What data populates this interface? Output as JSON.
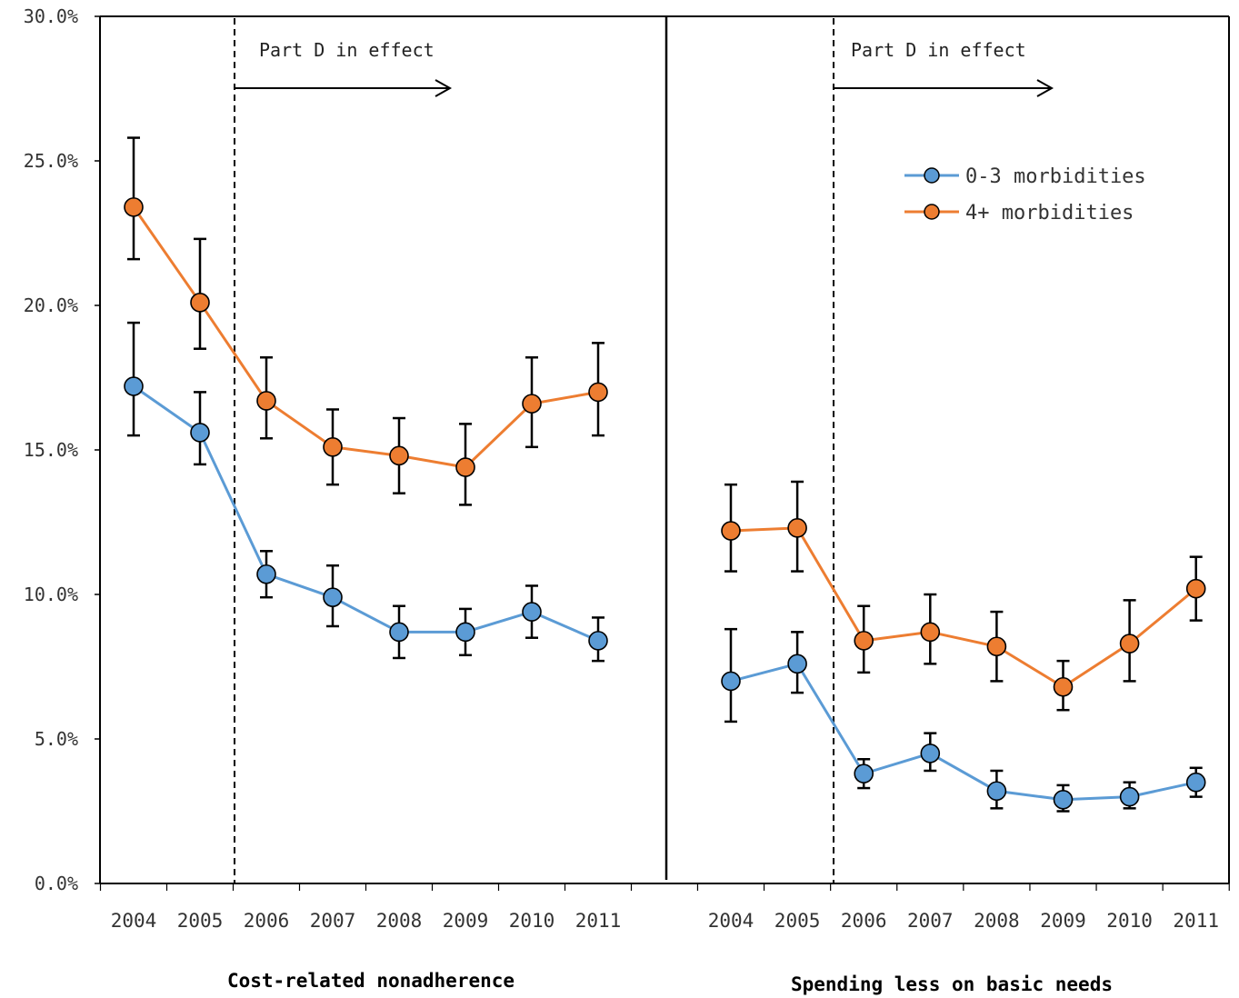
{
  "colors": {
    "series_0_3": "#5B9BD5",
    "series_4plus": "#ED7D31",
    "axis": "#000000",
    "errorbar": "#000000"
  },
  "chart_data": {
    "type": "line",
    "y_axis": {
      "min": 0,
      "max": 30,
      "ticks": [
        "0.0%",
        "5.0%",
        "10.0%",
        "15.0%",
        "20.0%",
        "25.0%",
        "30.0%"
      ]
    },
    "grid": false,
    "legend": {
      "placement": "top-right",
      "entries": [
        "0-3 morbidities",
        "4+ morbidities"
      ]
    },
    "panels": [
      {
        "title": "Cost-related nonadherence",
        "annotation": "Part D in effect",
        "policy_line_after": "2005",
        "categories": [
          "2004",
          "2005",
          "2006",
          "2007",
          "2008",
          "2009",
          "2010",
          "2011"
        ],
        "series": [
          {
            "name": "0-3 morbidities",
            "values": [
              17.2,
              15.6,
              10.7,
              9.9,
              8.7,
              8.7,
              9.4,
              8.4
            ],
            "lower": [
              15.5,
              14.5,
              9.9,
              8.9,
              7.8,
              7.9,
              8.5,
              7.7
            ],
            "upper": [
              19.4,
              17.0,
              11.5,
              11.0,
              9.6,
              9.5,
              10.3,
              9.2
            ]
          },
          {
            "name": "4+ morbidities",
            "values": [
              23.4,
              20.1,
              16.7,
              15.1,
              14.8,
              14.4,
              16.6,
              17.0
            ],
            "lower": [
              21.6,
              18.5,
              15.4,
              13.8,
              13.5,
              13.1,
              15.1,
              15.5
            ],
            "upper": [
              25.8,
              22.3,
              18.2,
              16.4,
              16.1,
              15.9,
              18.2,
              18.7
            ]
          }
        ]
      },
      {
        "title": "Spending less on basic needs",
        "annotation": "Part D in effect",
        "policy_line_after": "2005",
        "categories": [
          "2004",
          "2005",
          "2006",
          "2007",
          "2008",
          "2009",
          "2010",
          "2011"
        ],
        "series": [
          {
            "name": "0-3 morbidities",
            "values": [
              7.0,
              7.6,
              3.8,
              4.5,
              3.2,
              2.9,
              3.0,
              3.5
            ],
            "lower": [
              5.6,
              6.6,
              3.3,
              3.9,
              2.6,
              2.5,
              2.6,
              3.0
            ],
            "upper": [
              8.8,
              8.7,
              4.3,
              5.2,
              3.9,
              3.4,
              3.5,
              4.0
            ]
          },
          {
            "name": "4+ morbidities",
            "values": [
              12.2,
              12.3,
              8.4,
              8.7,
              8.2,
              6.8,
              8.3,
              10.2
            ],
            "lower": [
              10.8,
              10.8,
              7.3,
              7.6,
              7.0,
              6.0,
              7.0,
              9.1
            ],
            "upper": [
              13.8,
              13.9,
              9.6,
              10.0,
              9.4,
              7.7,
              9.8,
              11.3
            ]
          }
        ]
      }
    ]
  }
}
